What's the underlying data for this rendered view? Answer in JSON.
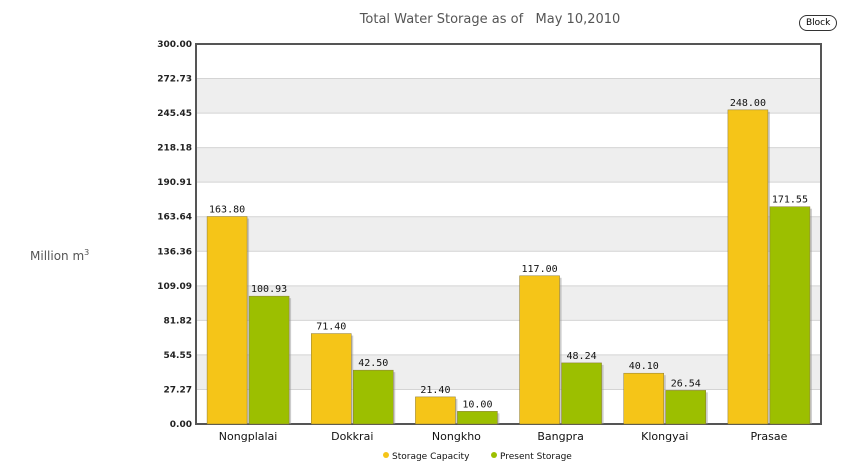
{
  "header": {
    "title": "Total Water Storage as of   May 10,2010",
    "block_label": "Block"
  },
  "colors": {
    "series1": "#f5c518",
    "series2": "#9cbf00",
    "band": "#eeeeee",
    "axis": "#555555"
  },
  "chart_data": {
    "type": "bar",
    "title": "Total Water Storage as of   May 10,2010",
    "ylabel": "Million m",
    "ylabel_sup": "3",
    "xlabel": "",
    "ylim": [
      0,
      300
    ],
    "yticks": [
      "0.00",
      "27.27",
      "54.55",
      "81.82",
      "109.09",
      "136.36",
      "163.64",
      "190.91",
      "218.18",
      "245.45",
      "272.73",
      "300.00"
    ],
    "categories": [
      "Nongplalai",
      "Dokkrai",
      "Nongkho",
      "Bangpra",
      "Klongyai",
      "Prasae"
    ],
    "series": [
      {
        "name": "Storage Capacity",
        "values": [
          163.8,
          71.4,
          21.4,
          117.0,
          40.1,
          248.0
        ],
        "labels": [
          "163.80",
          "71.40",
          "21.40",
          "117.00",
          "40.10",
          "248.00"
        ]
      },
      {
        "name": "Present Storage",
        "values": [
          100.93,
          42.5,
          10.0,
          48.24,
          26.54,
          171.55
        ],
        "labels": [
          "100.93",
          "42.50",
          "10.00",
          "48.24",
          "26.54",
          "171.55"
        ]
      }
    ],
    "grid": true,
    "legend": "bottom"
  }
}
